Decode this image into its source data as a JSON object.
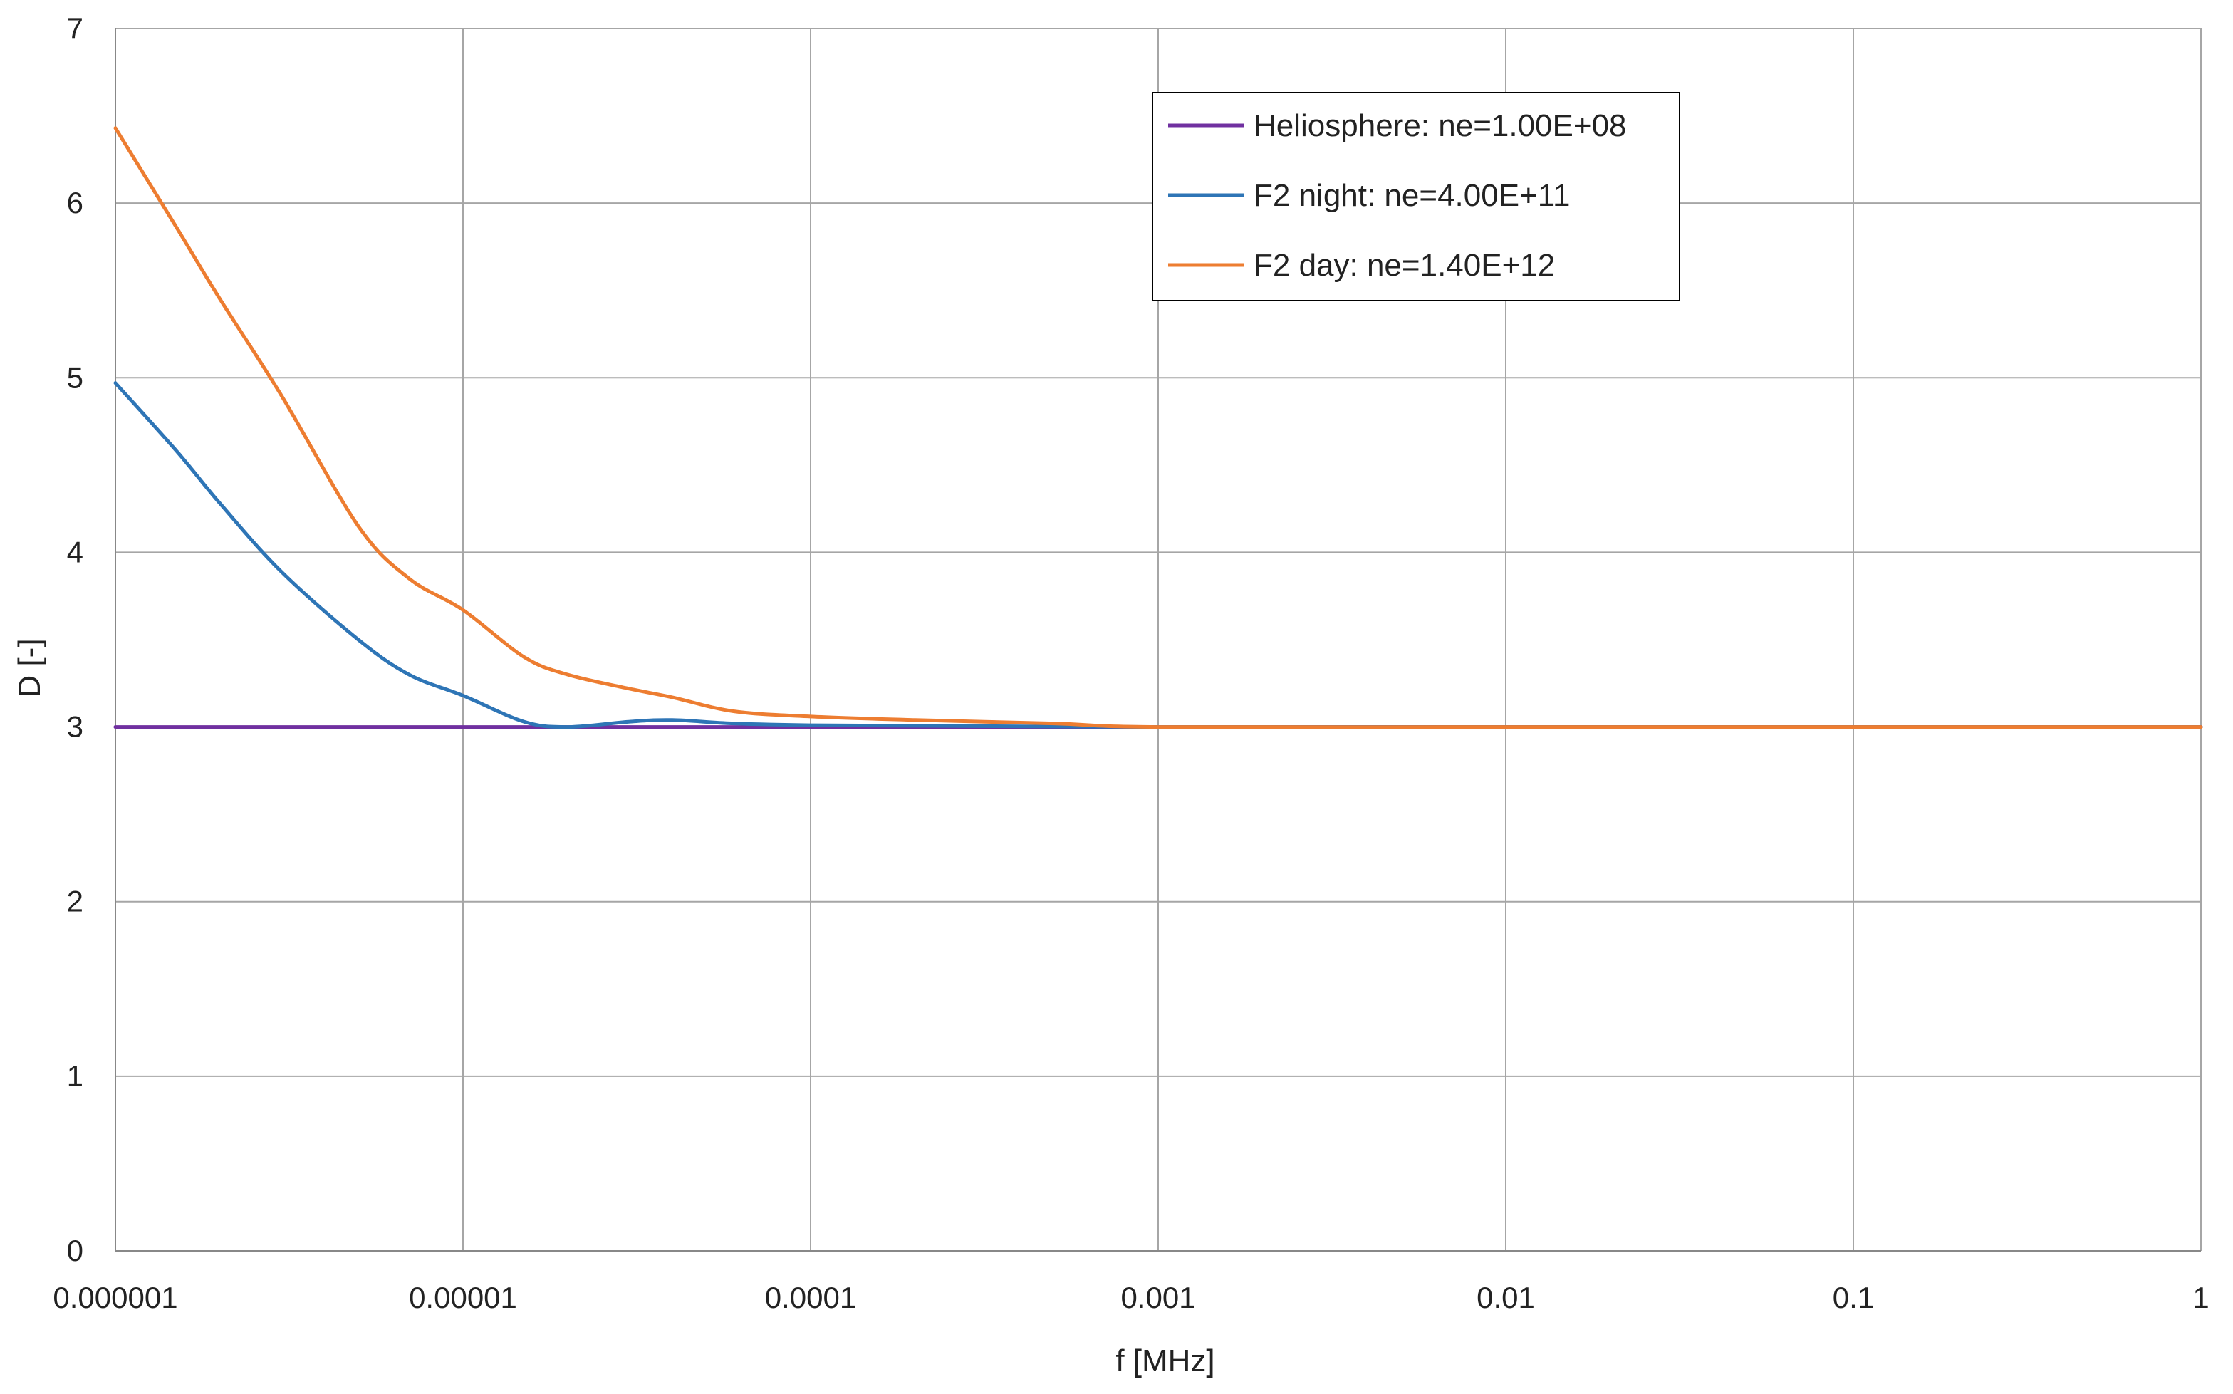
{
  "chart_data": {
    "type": "line",
    "title": "",
    "xlabel": "f [MHz]",
    "ylabel": "D [-]",
    "x_scale": "log",
    "xlim": [
      1e-06,
      1
    ],
    "ylim": [
      0,
      7
    ],
    "x_ticks": [
      "0.000001",
      "0.00001",
      "0.0001",
      "0.001",
      "0.01",
      "0.1",
      "1"
    ],
    "y_ticks": [
      "0",
      "1",
      "2",
      "3",
      "4",
      "5",
      "6",
      "7"
    ],
    "grid": true,
    "legend_position": "top-right",
    "series": [
      {
        "name": "Heliosphere: ne=1.00E+08",
        "color": "#7030A0",
        "points": [
          [
            1e-06,
            3.0
          ],
          [
            1,
            3.0
          ]
        ]
      },
      {
        "name": "F2 night: ne=4.00E+11",
        "color": "#2E75B6",
        "points": [
          [
            1e-06,
            4.97
          ],
          [
            1.5e-06,
            4.58
          ],
          [
            2e-06,
            4.28
          ],
          [
            3e-06,
            3.89
          ],
          [
            5e-06,
            3.5
          ],
          [
            7e-06,
            3.3
          ],
          [
            1e-05,
            3.18
          ],
          [
            1.5e-05,
            3.03
          ],
          [
            2e-05,
            3.0
          ],
          [
            3e-05,
            3.03
          ],
          [
            4e-05,
            3.04
          ],
          [
            6e-05,
            3.02
          ],
          [
            0.0001,
            3.01
          ],
          [
            0.0003,
            3.005
          ],
          [
            0.001,
            3.0
          ],
          [
            0.01,
            3.0
          ],
          [
            0.1,
            3.0
          ],
          [
            1,
            3.0
          ]
        ]
      },
      {
        "name": "F2 day: ne=1.40E+12",
        "color": "#ED7D31",
        "points": [
          [
            1e-06,
            6.43
          ],
          [
            1.5e-06,
            5.86
          ],
          [
            2e-06,
            5.45
          ],
          [
            3e-06,
            4.9
          ],
          [
            5e-06,
            4.15
          ],
          [
            7e-06,
            3.85
          ],
          [
            1e-05,
            3.67
          ],
          [
            1.5e-05,
            3.4
          ],
          [
            2e-05,
            3.3
          ],
          [
            3e-05,
            3.22
          ],
          [
            4e-05,
            3.17
          ],
          [
            6e-05,
            3.09
          ],
          [
            0.0001,
            3.06
          ],
          [
            0.0002,
            3.04
          ],
          [
            0.0005,
            3.02
          ],
          [
            0.001,
            3.0
          ],
          [
            0.01,
            3.0
          ],
          [
            0.1,
            3.0
          ],
          [
            1,
            3.0
          ]
        ]
      }
    ]
  }
}
